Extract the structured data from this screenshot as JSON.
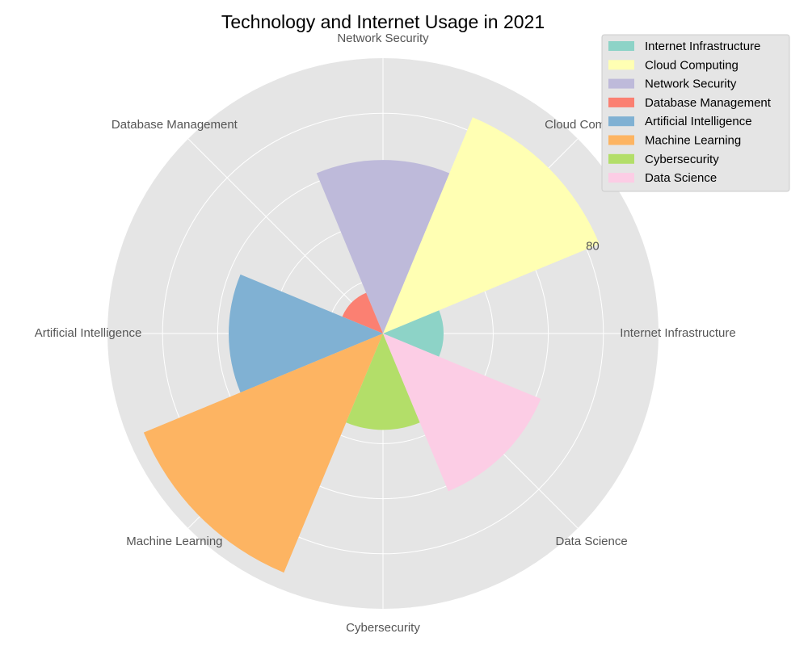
{
  "chart_data": {
    "type": "polar-bar",
    "title": "Technology and Internet Usage in 2021",
    "categories": [
      "Internet Infrastructure",
      "Cloud Computing",
      "Network Security",
      "Database Management",
      "Artificial Intelligence",
      "Machine Learning",
      "Cybersecurity",
      "Data Science"
    ],
    "values": [
      22,
      85,
      63,
      16,
      56,
      94,
      35,
      62
    ],
    "colors": [
      "#8dd3c7",
      "#ffffb3",
      "#bebada",
      "#fb8072",
      "#80b1d3",
      "#fdb462",
      "#b3de69",
      "#fccde5"
    ],
    "rlim": [
      0,
      100
    ],
    "radial_ticks": [
      20,
      40,
      60,
      80
    ],
    "radial_tick_labels": [
      "",
      "",
      "",
      "80"
    ],
    "grid": true,
    "background": "#e5e5e5",
    "legend_position": "top-right"
  }
}
